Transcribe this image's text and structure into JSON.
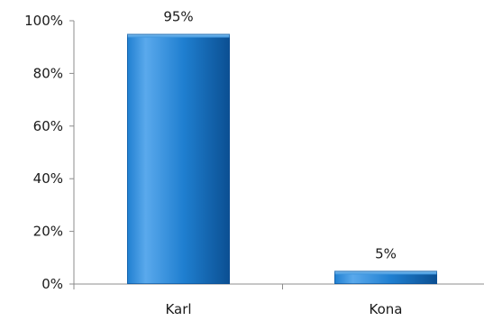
{
  "chart_data": {
    "type": "bar",
    "title": "",
    "xlabel": "",
    "ylabel": "",
    "categories": [
      "Karl",
      "Kona"
    ],
    "values": [
      95,
      5
    ],
    "value_labels": [
      "95%",
      "5%"
    ],
    "ylim": [
      0,
      100
    ],
    "y_ticks": [
      0,
      20,
      40,
      60,
      80,
      100
    ],
    "y_tick_labels": [
      "0%",
      "20%",
      "40%",
      "60%",
      "80%",
      "100%"
    ],
    "grid": false,
    "legend": "none",
    "colors": {
      "bar_light": "#5aa9ec",
      "bar_mid": "#1f7fd0",
      "bar_dark": "#0b4f92",
      "axis": "#8c8c8c",
      "text": "#1a1a1a"
    }
  }
}
